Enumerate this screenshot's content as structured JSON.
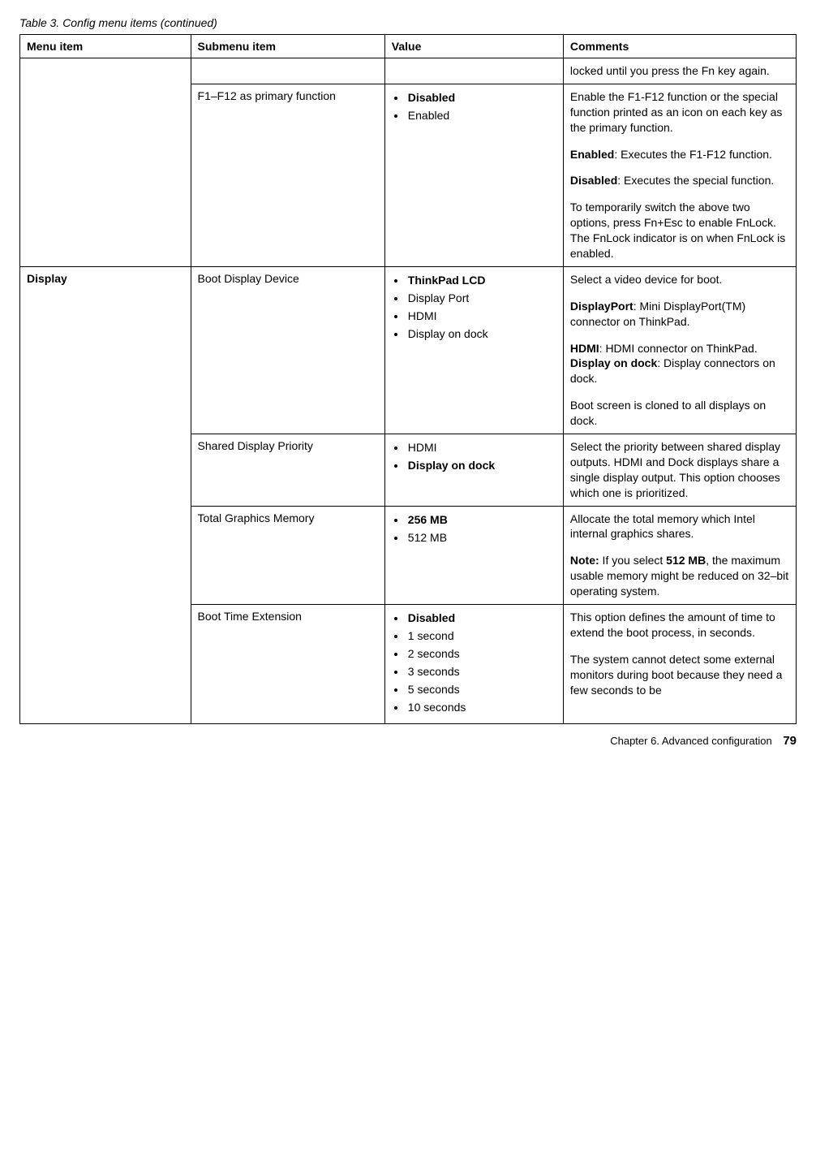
{
  "caption": "Table 3.  Config menu items (continued)",
  "headers": {
    "menu": "Menu item",
    "submenu": "Submenu item",
    "value": "Value",
    "comments": "Comments"
  },
  "rows": {
    "r0": {
      "comment_p1": "locked until you press the Fn key again."
    },
    "r1": {
      "submenu": "F1–F12 as primary function",
      "values": {
        "v0": "Disabled",
        "v1": "Enabled"
      },
      "comment_p1": "Enable the F1-F12 function or the special function printed as an icon on each key as the primary function.",
      "comment_p2a": "Enabled",
      "comment_p2b": ":  Executes the F1-F12 function.",
      "comment_p3a": "Disabled",
      "comment_p3b": ":   Executes the special function.",
      "comment_p4": "To temporarily switch the above two options, press Fn+Esc to enable FnLock. The FnLock indicator is on when FnLock is enabled."
    },
    "display_label": "Display",
    "r2": {
      "submenu": "Boot Display Device",
      "values": {
        "v0": "ThinkPad LCD",
        "v1": "Display Port",
        "v2": "HDMI",
        "v3": "Display on dock"
      },
      "comment_p1": "Select a video device for boot.",
      "comment_p2a": "DisplayPort",
      "comment_p2b": ":   Mini DisplayPort(TM) connector on ThinkPad.",
      "comment_p3a": "HDMI",
      "comment_p3b": ": HDMI connector on ThinkPad.",
      "comment_p4a": "Display on dock",
      "comment_p4b": ":  Display connectors on dock.",
      "comment_p5": "Boot screen is cloned to all displays on dock."
    },
    "r3": {
      "submenu": "Shared Display Priority",
      "values": {
        "v0": "HDMI",
        "v1": "Display on dock"
      },
      "comment_p1": "Select the priority between shared display outputs. HDMI and Dock displays share a single display output.   This option chooses which one is prioritized."
    },
    "r4": {
      "submenu": "Total Graphics Memory",
      "values": {
        "v0": "256 MB",
        "v1": "512 MB"
      },
      "comment_p1": "Allocate the total memory which Intel internal graphics shares.",
      "comment_p2a": "Note:",
      "comment_p2b": " If you select ",
      "comment_p2c": "512 MB",
      "comment_p2d": ", the maximum usable memory might be reduced on 32–bit operating system."
    },
    "r5": {
      "submenu": "Boot Time Extension",
      "values": {
        "v0": "Disabled",
        "v1": "1 second",
        "v2": "2 seconds",
        "v3": "3 seconds",
        "v4": "5 seconds",
        "v5": "10 seconds"
      },
      "comment_p1": "This option defines the amount of time to extend the boot process, in seconds.",
      "comment_p2": "The system cannot detect some external monitors during boot because they need a few seconds to be"
    }
  },
  "footer": {
    "chapter": "Chapter 6.  Advanced configuration",
    "page": "79"
  }
}
